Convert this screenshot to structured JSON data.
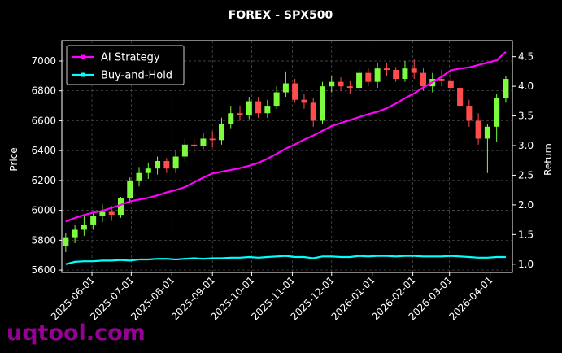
{
  "chart_data": {
    "type": "candlestick",
    "title": "FOREX - SPX500",
    "ylabel": "Price",
    "y2label": "Return",
    "watermark": "uqtool.com",
    "x": [
      "2025-05-12",
      "2025-05-19",
      "2025-05-26",
      "2025-06-02",
      "2025-06-09",
      "2025-06-16",
      "2025-06-23",
      "2025-06-30",
      "2025-07-07",
      "2025-07-14",
      "2025-07-21",
      "2025-07-28",
      "2025-08-04",
      "2025-08-11",
      "2025-08-18",
      "2025-08-25",
      "2025-09-01",
      "2025-09-08",
      "2025-09-15",
      "2025-09-22",
      "2025-09-29",
      "2025-10-06",
      "2025-10-13",
      "2025-10-20",
      "2025-10-27",
      "2025-11-03",
      "2025-11-10",
      "2025-11-17",
      "2025-11-24",
      "2025-12-01",
      "2025-12-08",
      "2025-12-15",
      "2025-12-22",
      "2025-12-29",
      "2026-01-05",
      "2026-01-12",
      "2026-01-19",
      "2026-01-26",
      "2026-02-02",
      "2026-02-09",
      "2026-02-16",
      "2026-02-23",
      "2026-03-02",
      "2026-03-09",
      "2026-03-16",
      "2026-03-23",
      "2026-03-30",
      "2026-04-06",
      "2026-04-13"
    ],
    "open": [
      5760,
      5820,
      5870,
      5900,
      5960,
      5990,
      5970,
      6080,
      6200,
      6250,
      6280,
      6330,
      6280,
      6360,
      6440,
      6430,
      6480,
      6470,
      6580,
      6650,
      6640,
      6730,
      6650,
      6700,
      6790,
      6850,
      6740,
      6720,
      6600,
      6830,
      6860,
      6830,
      6820,
      6920,
      6860,
      6950,
      6940,
      6880,
      6950,
      6920,
      6830,
      6880,
      6870,
      6820,
      6700,
      6600,
      6480,
      6560,
      6750
    ],
    "high": [
      5850,
      5900,
      5960,
      5990,
      6040,
      6030,
      6090,
      6220,
      6290,
      6320,
      6360,
      6350,
      6400,
      6480,
      6480,
      6520,
      6530,
      6620,
      6700,
      6700,
      6760,
      6760,
      6740,
      6830,
      6930,
      6880,
      6780,
      6750,
      6860,
      6900,
      6890,
      6870,
      6960,
      6950,
      6990,
      6990,
      6960,
      7000,
      7010,
      6950,
      6920,
      6940,
      6920,
      6860,
      6740,
      6650,
      6580,
      6780,
      6900
    ],
    "low": [
      5720,
      5780,
      5830,
      5870,
      5920,
      5930,
      5950,
      6050,
      6160,
      6210,
      6240,
      6250,
      6250,
      6330,
      6380,
      6410,
      6420,
      6440,
      6550,
      6600,
      6610,
      6620,
      6620,
      6680,
      6760,
      6720,
      6680,
      6560,
      6580,
      6790,
      6800,
      6780,
      6800,
      6830,
      6820,
      6900,
      6860,
      6860,
      6880,
      6800,
      6790,
      6830,
      6800,
      6680,
      6560,
      6440,
      6250,
      6460,
      6720
    ],
    "close": [
      5820,
      5870,
      5900,
      5960,
      5990,
      5970,
      6080,
      6200,
      6250,
      6280,
      6330,
      6280,
      6360,
      6440,
      6430,
      6480,
      6470,
      6580,
      6650,
      6640,
      6730,
      6650,
      6700,
      6790,
      6850,
      6740,
      6720,
      6600,
      6830,
      6860,
      6830,
      6820,
      6920,
      6860,
      6950,
      6940,
      6880,
      6950,
      6920,
      6830,
      6880,
      6870,
      6820,
      6700,
      6600,
      6480,
      6560,
      6750,
      6880
    ],
    "up_color": "#7cfc3c",
    "down_color": "#ff4d4d",
    "series": [
      {
        "name": "AI Strategy",
        "color": "#ff00ff",
        "axis": "y2",
        "values": [
          1.72,
          1.78,
          1.83,
          1.87,
          1.9,
          1.95,
          2.0,
          2.06,
          2.09,
          2.12,
          2.16,
          2.21,
          2.25,
          2.3,
          2.38,
          2.46,
          2.53,
          2.56,
          2.59,
          2.62,
          2.66,
          2.71,
          2.78,
          2.86,
          2.95,
          3.02,
          3.1,
          3.17,
          3.25,
          3.33,
          3.38,
          3.43,
          3.48,
          3.53,
          3.57,
          3.63,
          3.71,
          3.8,
          3.88,
          3.98,
          4.07,
          4.16,
          4.27,
          4.3,
          4.32,
          4.36,
          4.4,
          4.44,
          4.58
        ]
      },
      {
        "name": "Buy-and-Hold",
        "color": "#00ffff",
        "axis": "y2",
        "values": [
          1.0,
          1.04,
          1.05,
          1.05,
          1.06,
          1.06,
          1.07,
          1.06,
          1.08,
          1.08,
          1.09,
          1.09,
          1.08,
          1.09,
          1.1,
          1.09,
          1.1,
          1.1,
          1.11,
          1.11,
          1.12,
          1.11,
          1.12,
          1.13,
          1.14,
          1.12,
          1.12,
          1.1,
          1.13,
          1.13,
          1.12,
          1.12,
          1.14,
          1.13,
          1.14,
          1.14,
          1.13,
          1.14,
          1.14,
          1.13,
          1.13,
          1.13,
          1.14,
          1.13,
          1.12,
          1.11,
          1.11,
          1.12,
          1.12
        ]
      }
    ],
    "xlim": [
      "2025-05-09",
      "2026-04-18"
    ],
    "xticks": [
      "2025-06-01",
      "2025-07-01",
      "2025-08-01",
      "2025-09-01",
      "2025-10-01",
      "2025-11-01",
      "2025-12-01",
      "2026-01-01",
      "2026-02-01",
      "2026-03-01",
      "2026-04-01"
    ],
    "ylim": [
      5584,
      7136
    ],
    "yticks": [
      5600,
      5800,
      6000,
      6200,
      6400,
      6600,
      6800,
      7000
    ],
    "y2lim": [
      0.86,
      4.77
    ],
    "y2ticks": [
      {
        "value": 1,
        "label": "1.0"
      },
      1.5,
      {
        "value": 2,
        "label": "2.0"
      },
      2.5,
      {
        "value": 3,
        "label": "3.0"
      },
      3.5,
      {
        "value": 4,
        "label": "4.0"
      },
      4.5
    ],
    "grid": true,
    "legend": "upper left"
  }
}
